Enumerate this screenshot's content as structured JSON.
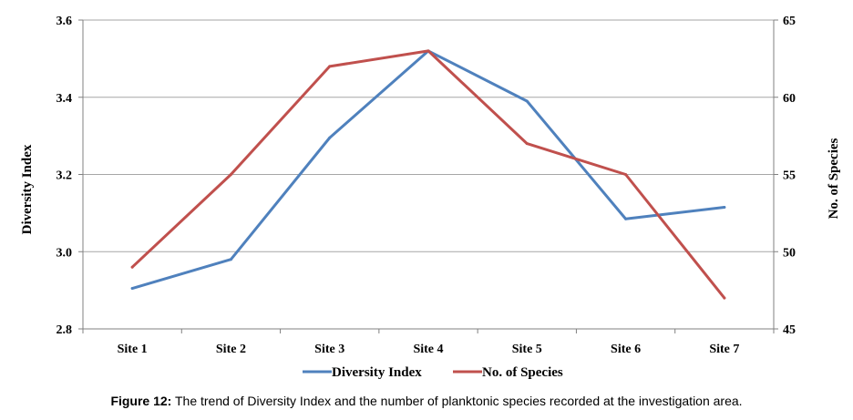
{
  "chart_data": {
    "type": "line",
    "categories": [
      "Site 1",
      "Site 2",
      "Site 3",
      "Site 4",
      "Site 5",
      "Site 6",
      "Site 7"
    ],
    "series": [
      {
        "name": "Diversity Index",
        "axis": "left",
        "color": "#4f81bd",
        "values": [
          2.905,
          2.98,
          3.295,
          3.52,
          3.39,
          3.085,
          3.115
        ]
      },
      {
        "name": "No. of Species",
        "axis": "right",
        "color": "#c0504d",
        "values": [
          49,
          55,
          62,
          63,
          57,
          55,
          47
        ]
      }
    ],
    "y_left": {
      "label": "Diversity Index",
      "range": [
        2.8,
        3.6
      ],
      "ticks": [
        "2.8",
        "3.0",
        "3.2",
        "3.4",
        "3.6"
      ]
    },
    "y_right": {
      "label": "No. of Species",
      "range": [
        45,
        65
      ],
      "ticks": [
        "45",
        "50",
        "55",
        "60",
        "65"
      ]
    },
    "grid": "horizontal",
    "legend_position": "bottom"
  },
  "caption": {
    "label": "Figure 12:",
    "text": " The trend of Diversity Index and the number of planktonic species recorded at the investigation area."
  }
}
